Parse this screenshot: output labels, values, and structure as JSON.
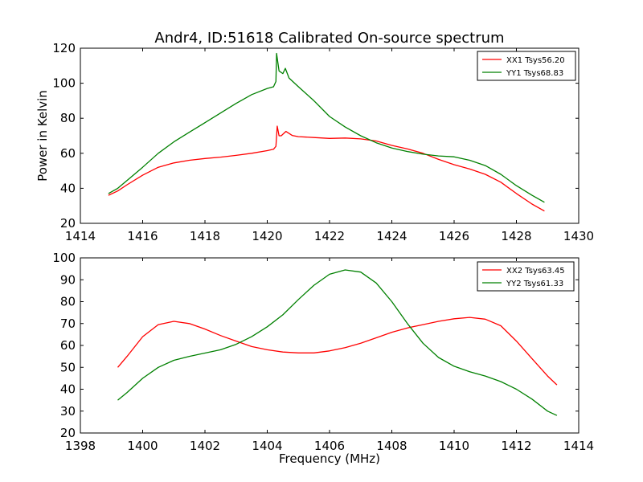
{
  "chart_data": [
    {
      "type": "line",
      "title": "Andr4, ID:51618 Calibrated On-source spectrum",
      "xlabel": "",
      "ylabel": "Power in Kelvin",
      "xlim": [
        1414,
        1430
      ],
      "ylim": [
        20,
        120
      ],
      "xticks": [
        1414,
        1416,
        1418,
        1420,
        1422,
        1424,
        1426,
        1428,
        1430
      ],
      "yticks": [
        20,
        40,
        60,
        80,
        100,
        120
      ],
      "legend_position": "top-right",
      "series": [
        {
          "name": "XX1 Tsys56.20",
          "color": "#ff0000",
          "points": [
            [
              1414.9,
              36
            ],
            [
              1415.2,
              38.5
            ],
            [
              1415.5,
              42
            ],
            [
              1416,
              47.5
            ],
            [
              1416.5,
              52
            ],
            [
              1417,
              54.5
            ],
            [
              1417.5,
              56
            ],
            [
              1418,
              57
            ],
            [
              1418.5,
              57.8
            ],
            [
              1419,
              58.8
            ],
            [
              1419.5,
              60
            ],
            [
              1420,
              61.5
            ],
            [
              1420.2,
              62.3
            ],
            [
              1420.28,
              64
            ],
            [
              1420.32,
              75.5
            ],
            [
              1420.38,
              70
            ],
            [
              1420.45,
              70
            ],
            [
              1420.6,
              72.5
            ],
            [
              1420.8,
              70.2
            ],
            [
              1421,
              69.5
            ],
            [
              1421.5,
              69
            ],
            [
              1422,
              68.5
            ],
            [
              1422.5,
              68.7
            ],
            [
              1423,
              68.2
            ],
            [
              1423.5,
              67
            ],
            [
              1424,
              64.5
            ],
            [
              1424.5,
              62.5
            ],
            [
              1425,
              60
            ],
            [
              1425.5,
              56.5
            ],
            [
              1426,
              53.5
            ],
            [
              1426.5,
              51
            ],
            [
              1427,
              48
            ],
            [
              1427.5,
              43.5
            ],
            [
              1428,
              37
            ],
            [
              1428.5,
              31
            ],
            [
              1428.9,
              27
            ]
          ]
        },
        {
          "name": "YY1 Tsys68.83",
          "color": "#008000",
          "points": [
            [
              1414.9,
              37
            ],
            [
              1415.2,
              40
            ],
            [
              1415.5,
              44.5
            ],
            [
              1416,
              52
            ],
            [
              1416.5,
              60
            ],
            [
              1417,
              66.5
            ],
            [
              1417.5,
              72
            ],
            [
              1418,
              77.5
            ],
            [
              1418.5,
              83
            ],
            [
              1419,
              88.5
            ],
            [
              1419.5,
              93.5
            ],
            [
              1420,
              97
            ],
            [
              1420.2,
              98
            ],
            [
              1420.28,
              101
            ],
            [
              1420.3,
              117
            ],
            [
              1420.38,
              107
            ],
            [
              1420.5,
              105.5
            ],
            [
              1420.58,
              108.5
            ],
            [
              1420.7,
              103
            ],
            [
              1421,
              98
            ],
            [
              1421.5,
              90
            ],
            [
              1422,
              81
            ],
            [
              1422.5,
              75
            ],
            [
              1423,
              70
            ],
            [
              1423.5,
              66
            ],
            [
              1424,
              63
            ],
            [
              1424.5,
              61
            ],
            [
              1425,
              59.5
            ],
            [
              1425.5,
              58.5
            ],
            [
              1426,
              58
            ],
            [
              1426.5,
              56
            ],
            [
              1427,
              53
            ],
            [
              1427.5,
              48
            ],
            [
              1428,
              41.5
            ],
            [
              1428.5,
              36
            ],
            [
              1428.9,
              32
            ]
          ]
        }
      ]
    },
    {
      "type": "line",
      "title": "",
      "xlabel": "Frequency (MHz)",
      "ylabel": "",
      "xlim": [
        1398,
        1414
      ],
      "ylim": [
        20,
        100
      ],
      "xticks": [
        1398,
        1400,
        1402,
        1404,
        1406,
        1408,
        1410,
        1412,
        1414
      ],
      "yticks": [
        20,
        30,
        40,
        50,
        60,
        70,
        80,
        90,
        100
      ],
      "legend_position": "top-right",
      "series": [
        {
          "name": "XX2 Tsys63.45",
          "color": "#ff0000",
          "points": [
            [
              1399.2,
              50
            ],
            [
              1399.5,
              55
            ],
            [
              1400,
              64
            ],
            [
              1400.5,
              69.5
            ],
            [
              1401,
              71
            ],
            [
              1401.5,
              70
            ],
            [
              1402,
              67.5
            ],
            [
              1402.5,
              64.5
            ],
            [
              1403,
              62
            ],
            [
              1403.5,
              59.5
            ],
            [
              1404,
              58
            ],
            [
              1404.5,
              57
            ],
            [
              1405,
              56.6
            ],
            [
              1405.5,
              56.6
            ],
            [
              1406,
              57.5
            ],
            [
              1406.5,
              59
            ],
            [
              1407,
              61
            ],
            [
              1407.5,
              63.5
            ],
            [
              1408,
              66
            ],
            [
              1408.5,
              68
            ],
            [
              1409,
              69.5
            ],
            [
              1409.5,
              71
            ],
            [
              1410,
              72.2
            ],
            [
              1410.5,
              72.8
            ],
            [
              1411,
              72
            ],
            [
              1411.5,
              69
            ],
            [
              1412,
              62
            ],
            [
              1412.5,
              54
            ],
            [
              1413,
              46
            ],
            [
              1413.3,
              42
            ]
          ]
        },
        {
          "name": "YY2 Tsys61.33",
          "color": "#008000",
          "points": [
            [
              1399.2,
              35
            ],
            [
              1399.5,
              38.5
            ],
            [
              1400,
              45
            ],
            [
              1400.5,
              50
            ],
            [
              1401,
              53.2
            ],
            [
              1401.5,
              55
            ],
            [
              1402,
              56.5
            ],
            [
              1402.5,
              58
            ],
            [
              1403,
              60.5
            ],
            [
              1403.5,
              64
            ],
            [
              1404,
              68.5
            ],
            [
              1404.5,
              74
            ],
            [
              1405,
              81
            ],
            [
              1405.5,
              87.5
            ],
            [
              1406,
              92.5
            ],
            [
              1406.5,
              94.5
            ],
            [
              1407,
              93.5
            ],
            [
              1407.5,
              88.5
            ],
            [
              1408,
              80
            ],
            [
              1408.5,
              70
            ],
            [
              1409,
              61
            ],
            [
              1409.5,
              54.5
            ],
            [
              1410,
              50.5
            ],
            [
              1410.5,
              48
            ],
            [
              1411,
              46
            ],
            [
              1411.5,
              43.5
            ],
            [
              1412,
              40
            ],
            [
              1412.5,
              35.5
            ],
            [
              1413,
              30
            ],
            [
              1413.3,
              28
            ]
          ]
        }
      ]
    }
  ]
}
